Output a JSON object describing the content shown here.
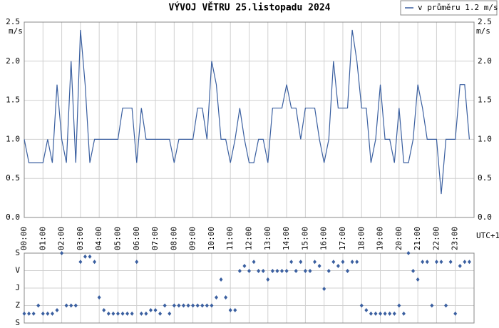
{
  "chart_data": [
    {
      "type": "line",
      "title": "VÝVOJ VĚTRU  25.listopadu 2024",
      "y_unit": "m/s",
      "x_note": "UTC+1",
      "x": [
        0,
        0.25,
        0.5,
        0.75,
        1,
        1.25,
        1.5,
        1.75,
        2,
        2.25,
        2.5,
        2.75,
        3,
        3.25,
        3.5,
        3.75,
        4,
        4.25,
        4.5,
        4.75,
        5,
        5.25,
        5.5,
        5.75,
        6,
        6.25,
        6.5,
        6.75,
        7,
        7.25,
        7.5,
        7.75,
        8,
        8.25,
        8.5,
        8.75,
        9,
        9.25,
        9.5,
        9.75,
        10,
        10.25,
        10.5,
        10.75,
        11,
        11.25,
        11.5,
        11.75,
        12,
        12.25,
        12.5,
        12.75,
        13,
        13.25,
        13.5,
        13.75,
        14,
        14.25,
        14.5,
        14.75,
        15,
        15.25,
        15.5,
        15.75,
        16,
        16.25,
        16.5,
        16.75,
        17,
        17.25,
        17.5,
        17.75,
        18,
        18.25,
        18.5,
        18.75,
        19,
        19.25,
        19.5,
        19.75,
        20,
        20.25,
        20.5,
        20.75,
        21,
        21.25,
        21.5,
        21.75,
        22,
        22.25,
        22.5,
        22.75,
        23,
        23.25,
        23.5,
        23.75
      ],
      "series": [
        {
          "name": "v průměru 1.2 m/s",
          "color": "#3a5fa0",
          "values": [
            1.0,
            0.7,
            0.7,
            0.7,
            0.7,
            1.0,
            0.7,
            1.7,
            1.0,
            0.7,
            2.0,
            0.7,
            2.4,
            1.7,
            0.7,
            1.0,
            1.0,
            1.0,
            1.0,
            1.0,
            1.0,
            1.4,
            1.4,
            1.4,
            0.7,
            1.4,
            1.0,
            1.0,
            1.0,
            1.0,
            1.0,
            1.0,
            0.7,
            1.0,
            1.0,
            1.0,
            1.0,
            1.4,
            1.4,
            1.0,
            2.0,
            1.7,
            1.0,
            1.0,
            0.7,
            1.0,
            1.4,
            1.0,
            0.7,
            0.7,
            1.0,
            1.0,
            0.7,
            1.4,
            1.4,
            1.4,
            1.7,
            1.4,
            1.4,
            1.0,
            1.4,
            1.4,
            1.4,
            1.0,
            0.7,
            1.0,
            2.0,
            1.4,
            1.4,
            1.4,
            2.4,
            2.0,
            1.4,
            1.4,
            0.7,
            1.0,
            1.7,
            1.0,
            1.0,
            0.7,
            1.4,
            0.7,
            0.7,
            1.0,
            1.7,
            1.4,
            1.0,
            1.0,
            1.0,
            0.3,
            1.0,
            1.0,
            1.0,
            1.7,
            1.7,
            1.0
          ]
        }
      ],
      "xlim": [
        0,
        24
      ],
      "xticks": [
        {
          "value": 0,
          "label": "00:00"
        },
        {
          "value": 1,
          "label": "01:00"
        },
        {
          "value": 2,
          "label": "02:00"
        },
        {
          "value": 3,
          "label": "03:00"
        },
        {
          "value": 4,
          "label": "04:00"
        },
        {
          "value": 5,
          "label": "05:00"
        },
        {
          "value": 6,
          "label": "06:00"
        },
        {
          "value": 7,
          "label": "07:00"
        },
        {
          "value": 8,
          "label": "08:00"
        },
        {
          "value": 9,
          "label": "09:00"
        },
        {
          "value": 10,
          "label": "10:00"
        },
        {
          "value": 11,
          "label": "11:00"
        },
        {
          "value": 12,
          "label": "12:00"
        },
        {
          "value": 13,
          "label": "13:00"
        },
        {
          "value": 14,
          "label": "14:00"
        },
        {
          "value": 15,
          "label": "15:00"
        },
        {
          "value": 16,
          "label": "16:00"
        },
        {
          "value": 17,
          "label": "17:00"
        },
        {
          "value": 18,
          "label": "18:00"
        },
        {
          "value": 19,
          "label": "19:00"
        },
        {
          "value": 20,
          "label": "20:00"
        },
        {
          "value": 21,
          "label": "21:00"
        },
        {
          "value": 22,
          "label": "22:00"
        },
        {
          "value": 23,
          "label": "23:00"
        }
      ],
      "ylim": [
        0,
        2.5
      ],
      "yticks": [
        {
          "value": 0,
          "label": "0.0"
        },
        {
          "value": 0.5,
          "label": "0.5"
        },
        {
          "value": 1,
          "label": "1.0"
        },
        {
          "value": 1.5,
          "label": "1.5"
        },
        {
          "value": 2,
          "label": "2.0"
        },
        {
          "value": 2.5,
          "label": "2.5"
        }
      ],
      "grid": true,
      "legend": "top-right"
    },
    {
      "type": "scatter",
      "color": "#3a5fa0",
      "x": [
        0,
        0.25,
        0.5,
        0.75,
        1,
        1.25,
        1.5,
        1.75,
        2,
        2.25,
        2.5,
        2.75,
        3,
        3.25,
        3.5,
        3.75,
        4,
        4.25,
        4.5,
        4.75,
        5,
        5.25,
        5.5,
        5.75,
        6,
        6.25,
        6.5,
        6.75,
        7,
        7.25,
        7.5,
        7.75,
        8,
        8.25,
        8.5,
        8.75,
        9,
        9.25,
        9.5,
        9.75,
        10,
        10.25,
        10.5,
        10.75,
        11,
        11.25,
        11.5,
        11.75,
        12,
        12.25,
        12.5,
        12.75,
        13,
        13.25,
        13.5,
        13.75,
        14,
        14.25,
        14.5,
        14.75,
        15,
        15.25,
        15.5,
        15.75,
        16,
        16.25,
        16.5,
        16.75,
        17,
        17.25,
        17.5,
        17.75,
        18,
        18.25,
        18.5,
        18.75,
        19,
        19.25,
        19.5,
        19.75,
        20,
        20.25,
        20.5,
        20.75,
        21,
        21.25,
        21.5,
        21.75,
        22,
        22.25,
        22.5,
        22.75,
        23,
        23.25,
        23.5,
        23.75
      ],
      "values": [
        312,
        312,
        312,
        270,
        312,
        312,
        312,
        294,
        0,
        270,
        270,
        270,
        45,
        18,
        18,
        45,
        228,
        294,
        312,
        312,
        312,
        312,
        312,
        312,
        45,
        312,
        312,
        294,
        294,
        312,
        270,
        312,
        270,
        270,
        270,
        270,
        270,
        270,
        270,
        270,
        270,
        228,
        136,
        228,
        294,
        294,
        92,
        66,
        92,
        45,
        92,
        92,
        136,
        92,
        92,
        92,
        92,
        45,
        92,
        45,
        92,
        92,
        45,
        66,
        184,
        92,
        45,
        66,
        45,
        92,
        45,
        45,
        270,
        294,
        312,
        312,
        312,
        312,
        312,
        312,
        270,
        312,
        0,
        92,
        136,
        45,
        45,
        270,
        45,
        45,
        270,
        45,
        312,
        66,
        45,
        45
      ],
      "xlim": [
        0,
        24
      ],
      "ylim": [
        0,
        360
      ],
      "y_inverted": true,
      "yticks": [
        {
          "value": 0,
          "label": "S"
        },
        {
          "value": 90,
          "label": "V"
        },
        {
          "value": 180,
          "label": "J"
        },
        {
          "value": 270,
          "label": "Z"
        },
        {
          "value": 360,
          "label": "S"
        }
      ],
      "grid": true
    }
  ]
}
